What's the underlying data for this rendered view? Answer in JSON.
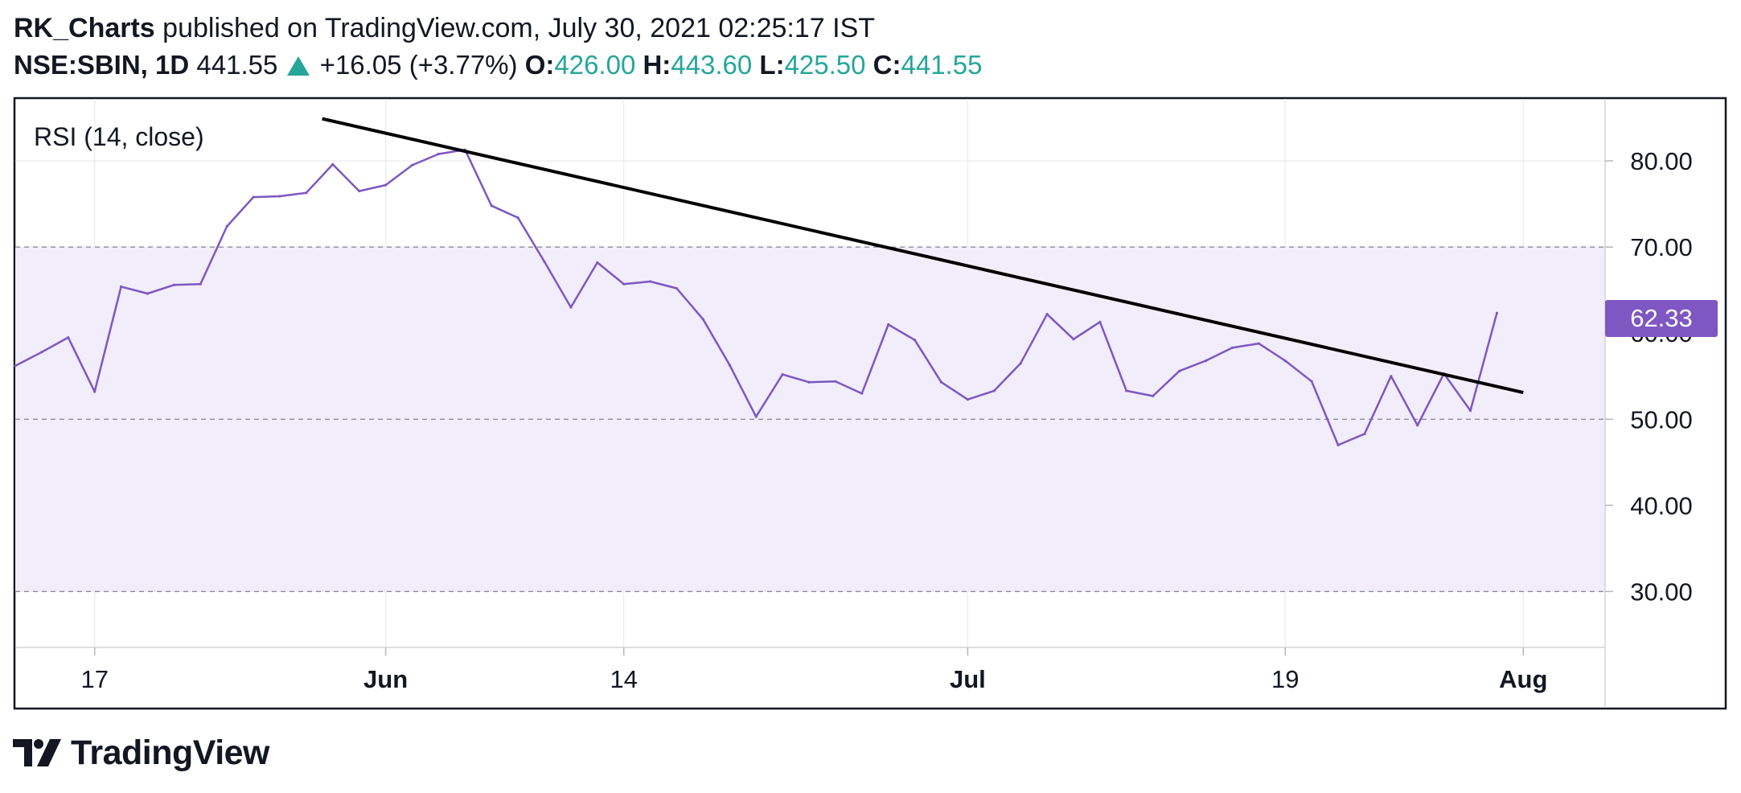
{
  "header": {
    "author": "RK_Charts",
    "published_text": "published on TradingView.com, July 30, 2021 02:25:17 IST",
    "symbol": "NSE:SBIN, 1D",
    "last_price": "441.55",
    "change": "+16.05 (+3.77%)",
    "open_label": "O:",
    "open_value": "426.00",
    "high_label": "H:",
    "high_value": "443.60",
    "low_label": "L:",
    "low_value": "425.50",
    "close_label": "C:",
    "close_value": "441.55"
  },
  "footer": {
    "brand": "TradingView"
  },
  "colors": {
    "rsi_line": "#7e57c2",
    "band_fill": "#f1edfa",
    "positive": "#26a69a",
    "trendline": "#000000",
    "text": "#131722"
  },
  "chart_data": {
    "type": "line",
    "title": "RSI (14, close)",
    "ylim": [
      23.5,
      87.2
    ],
    "y_ticks": [
      "30.00",
      "40.00",
      "50.00",
      "60.00",
      "70.00",
      "80.00"
    ],
    "band": {
      "upper": 70,
      "lower": 30,
      "middle": 50
    },
    "x_ticks": [
      {
        "label": "17",
        "bold": false,
        "index": 3
      },
      {
        "label": "Jun",
        "bold": true,
        "index": 14
      },
      {
        "label": "14",
        "bold": false,
        "index": 23
      },
      {
        "label": "Jul",
        "bold": true,
        "index": 36
      },
      {
        "label": "19",
        "bold": false,
        "index": 48
      },
      {
        "label": "Aug",
        "bold": true,
        "index": 57
      }
    ],
    "x_max_index": 63,
    "current_value": "62.33",
    "series": [
      {
        "values": [
          56.2,
          57.8,
          59.5,
          53.2,
          65.4,
          64.6,
          65.6,
          65.7,
          72.4,
          75.8,
          75.9,
          76.3,
          79.6,
          76.5,
          77.2,
          79.5,
          80.8,
          81.3,
          74.8,
          73.4,
          68.3,
          63.0,
          68.2,
          65.7,
          66.0,
          65.2,
          61.6,
          56.3,
          50.3,
          55.2,
          54.3,
          54.4,
          53.0,
          61.0,
          59.2,
          54.3,
          52.3,
          53.3,
          56.5,
          62.2,
          59.3,
          61.3,
          53.3,
          52.7,
          55.6,
          56.8,
          58.3,
          58.8,
          56.8,
          54.4,
          47.0,
          48.3,
          55.0,
          49.3,
          55.3,
          51.0,
          62.33
        ]
      }
    ],
    "trendline": {
      "from": {
        "index": 11.6,
        "value": 84.9
      },
      "to": {
        "index": 57,
        "value": 53.1
      }
    }
  }
}
